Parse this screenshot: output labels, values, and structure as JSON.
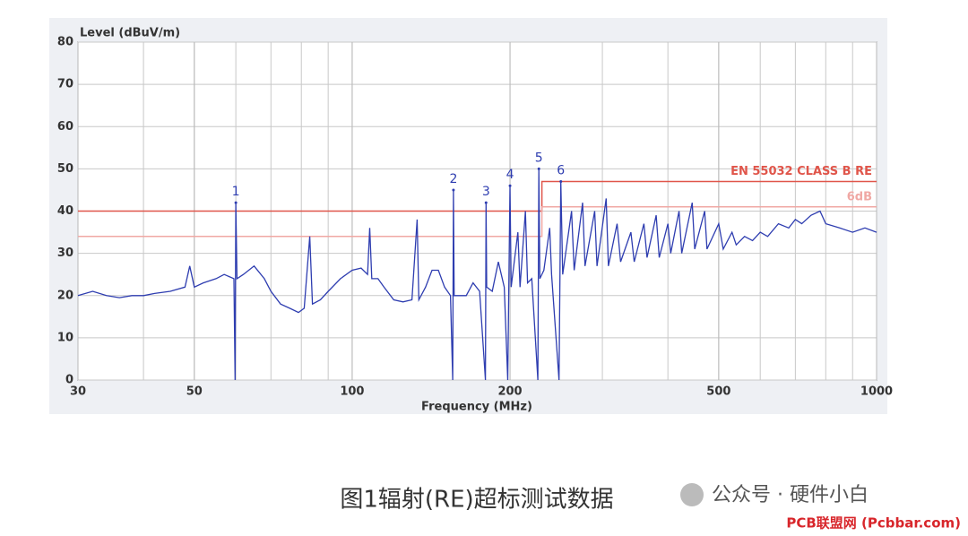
{
  "chart_data": {
    "type": "line",
    "ylabel": "Level (dBuV/m)",
    "xlabel": "Frequency (MHz)",
    "xlog": true,
    "grid": true,
    "xlim": [
      30,
      1000
    ],
    "xticks": [
      30,
      50,
      100,
      200,
      500,
      1000
    ],
    "ylim": [
      0,
      80
    ],
    "yticks": [
      0,
      10,
      20,
      30,
      40,
      50,
      60,
      70,
      80
    ],
    "trace": {
      "color": "#2e3db0",
      "x": [
        30,
        32,
        34,
        36,
        38,
        40,
        42,
        45,
        48,
        49,
        50,
        52,
        55,
        57,
        59.5,
        59.8,
        60,
        60.3,
        62,
        65,
        68,
        70,
        73,
        76,
        79,
        81,
        83,
        84,
        87,
        90,
        95,
        100,
        104,
        107,
        108,
        109,
        112,
        115,
        120,
        125,
        130,
        133,
        134,
        138,
        142,
        146,
        150,
        154,
        155.5,
        156,
        156.5,
        160,
        165,
        170,
        175,
        179.5,
        180,
        180.5,
        185,
        190,
        195,
        198,
        200,
        201,
        207,
        209,
        214,
        216,
        220,
        226,
        227,
        228,
        232,
        238,
        240,
        248,
        250,
        252,
        262,
        265,
        275,
        278,
        290,
        293,
        305,
        308,
        320,
        325,
        340,
        345,
        360,
        365,
        380,
        385,
        400,
        405,
        420,
        425,
        445,
        450,
        470,
        475,
        500,
        510,
        530,
        540,
        560,
        580,
        600,
        620,
        650,
        680,
        700,
        720,
        750,
        780,
        800,
        850,
        900,
        950,
        1000
      ],
      "y": [
        20,
        21,
        20,
        19.5,
        20,
        20,
        20.5,
        21,
        22,
        27,
        22,
        23,
        24,
        25,
        24,
        0,
        42,
        24,
        25,
        27,
        24,
        21,
        18,
        17,
        16,
        17,
        34,
        18,
        19,
        21,
        24,
        26,
        26.5,
        25,
        36,
        24,
        24,
        22,
        19,
        18.5,
        19,
        38,
        19,
        22,
        26,
        26,
        22,
        20,
        0,
        45,
        20,
        20,
        20,
        23,
        21,
        0,
        42,
        22,
        21,
        28,
        22,
        0,
        46,
        22,
        35,
        22,
        40,
        23,
        24,
        0,
        50,
        24,
        26,
        36,
        25,
        0,
        47,
        25,
        40,
        26,
        42,
        27,
        40,
        27,
        43,
        27,
        37,
        28,
        35,
        28,
        37,
        29,
        39,
        29,
        37,
        30,
        40,
        30,
        42,
        31,
        40,
        31,
        37,
        31,
        35,
        32,
        34,
        33,
        35,
        34,
        37,
        36,
        38,
        37,
        39,
        40,
        37,
        36,
        35,
        36,
        35
      ]
    },
    "limits": [
      {
        "name": "EN 55032 CLASS B RE",
        "color": "#e0554a",
        "x": [
          30,
          230,
          230,
          1000
        ],
        "y": [
          40,
          40,
          47,
          47
        ]
      },
      {
        "name": "6dB",
        "color": "#f0a8a4",
        "x": [
          30,
          230,
          230,
          1000
        ],
        "y": [
          34,
          34,
          41,
          41
        ]
      }
    ],
    "markers": [
      {
        "label": "1",
        "x": 60,
        "y": 42
      },
      {
        "label": "2",
        "x": 156,
        "y": 45
      },
      {
        "label": "3",
        "x": 180,
        "y": 42
      },
      {
        "label": "4",
        "x": 200,
        "y": 46
      },
      {
        "label": "5",
        "x": 227,
        "y": 50
      },
      {
        "label": "6",
        "x": 250,
        "y": 47
      }
    ]
  },
  "caption": "图1辐射(RE)超标测试数据",
  "watermark": "公众号 · 硬件小白",
  "source": "PCB联盟网 (Pcbbar.com)"
}
